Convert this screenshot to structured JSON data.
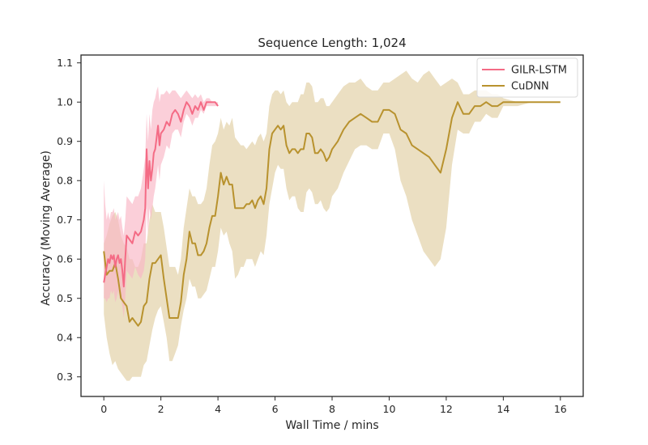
{
  "chart_data": {
    "type": "line",
    "title": "Sequence Length: 1,024",
    "xlabel": "Wall Time / mins",
    "ylabel": "Accuracy (Moving Average)",
    "xlim": [
      -0.8,
      16.8
    ],
    "ylim": [
      0.25,
      1.12
    ],
    "xticks": [
      0,
      2,
      4,
      6,
      8,
      10,
      12,
      14,
      16
    ],
    "xtick_labels": [
      "0",
      "2",
      "4",
      "6",
      "8",
      "10",
      "12",
      "14",
      "16"
    ],
    "yticks": [
      0.3,
      0.4,
      0.5,
      0.6,
      0.7,
      0.8,
      0.9,
      1.0,
      1.1
    ],
    "ytick_labels": [
      "0.3",
      "0.4",
      "0.5",
      "0.6",
      "0.7",
      "0.8",
      "0.9",
      "1.0",
      "1.1"
    ],
    "grid": false,
    "legend_position": "top-right",
    "series": [
      {
        "name": "GILR-LSTM",
        "color": "#f46b85",
        "band_color": "#f9b5c5",
        "x": [
          0,
          0.05,
          0.1,
          0.15,
          0.2,
          0.25,
          0.3,
          0.35,
          0.4,
          0.45,
          0.5,
          0.55,
          0.6,
          0.65,
          0.7,
          0.75,
          0.8,
          0.9,
          1.0,
          1.1,
          1.2,
          1.3,
          1.4,
          1.45,
          1.5,
          1.55,
          1.6,
          1.65,
          1.7,
          1.75,
          1.8,
          1.85,
          1.9,
          1.95,
          2.0,
          2.1,
          2.2,
          2.3,
          2.4,
          2.5,
          2.6,
          2.7,
          2.8,
          2.9,
          3.0,
          3.1,
          3.2,
          3.3,
          3.4,
          3.5,
          3.6,
          3.7,
          3.8,
          3.9,
          4.0
        ],
        "y": [
          0.54,
          0.56,
          0.58,
          0.6,
          0.59,
          0.61,
          0.6,
          0.61,
          0.58,
          0.6,
          0.61,
          0.59,
          0.6,
          0.57,
          0.53,
          0.6,
          0.66,
          0.65,
          0.64,
          0.67,
          0.66,
          0.67,
          0.7,
          0.73,
          0.88,
          0.78,
          0.85,
          0.8,
          0.83,
          0.87,
          0.88,
          0.91,
          0.94,
          0.89,
          0.92,
          0.93,
          0.95,
          0.94,
          0.97,
          0.98,
          0.97,
          0.95,
          0.98,
          1.0,
          0.99,
          0.97,
          0.99,
          0.98,
          1.0,
          0.98,
          1.0,
          1.0,
          1.0,
          1.0,
          0.99
        ],
        "band_lower": [
          0.5,
          0.5,
          0.49,
          0.5,
          0.5,
          0.52,
          0.51,
          0.52,
          0.49,
          0.5,
          0.52,
          0.5,
          0.5,
          0.48,
          0.45,
          0.5,
          0.57,
          0.56,
          0.55,
          0.58,
          0.56,
          0.55,
          0.57,
          0.6,
          0.74,
          0.66,
          0.73,
          0.7,
          0.73,
          0.76,
          0.78,
          0.81,
          0.84,
          0.8,
          0.84,
          0.86,
          0.89,
          0.88,
          0.92,
          0.93,
          0.93,
          0.91,
          0.95,
          0.97,
          0.96,
          0.94,
          0.96,
          0.96,
          0.98,
          0.97,
          0.99,
          0.99,
          0.99,
          0.99,
          0.99
        ],
        "band_upper": [
          0.8,
          0.74,
          0.7,
          0.72,
          0.7,
          0.72,
          0.72,
          0.73,
          0.7,
          0.71,
          0.72,
          0.7,
          0.71,
          0.68,
          0.66,
          0.7,
          0.76,
          0.75,
          0.74,
          0.76,
          0.76,
          0.78,
          0.83,
          0.86,
          0.97,
          0.9,
          0.97,
          0.93,
          0.98,
          1.0,
          1.01,
          1.03,
          1.04,
          1.0,
          1.02,
          1.02,
          1.03,
          1.02,
          1.03,
          1.03,
          1.02,
          1.01,
          1.02,
          1.03,
          1.02,
          1.01,
          1.02,
          1.01,
          1.02,
          1.0,
          1.01,
          1.01,
          1.0,
          1.0,
          1.0
        ]
      },
      {
        "name": "CuDNN",
        "color": "#b8922e",
        "band_color": "#e6d7b3",
        "x": [
          0,
          0.1,
          0.2,
          0.3,
          0.4,
          0.5,
          0.6,
          0.7,
          0.8,
          0.9,
          1.0,
          1.1,
          1.2,
          1.3,
          1.4,
          1.5,
          1.6,
          1.7,
          1.8,
          1.9,
          2.0,
          2.1,
          2.2,
          2.3,
          2.4,
          2.5,
          2.6,
          2.7,
          2.8,
          2.9,
          3.0,
          3.1,
          3.2,
          3.3,
          3.4,
          3.5,
          3.6,
          3.7,
          3.8,
          3.9,
          4.0,
          4.1,
          4.2,
          4.3,
          4.4,
          4.5,
          4.6,
          4.7,
          4.8,
          4.9,
          5.0,
          5.1,
          5.2,
          5.3,
          5.4,
          5.5,
          5.6,
          5.7,
          5.8,
          5.9,
          6.0,
          6.1,
          6.2,
          6.3,
          6.4,
          6.5,
          6.6,
          6.7,
          6.8,
          6.9,
          7.0,
          7.1,
          7.2,
          7.3,
          7.4,
          7.5,
          7.6,
          7.7,
          7.8,
          7.9,
          8.0,
          8.2,
          8.4,
          8.6,
          8.8,
          9.0,
          9.2,
          9.4,
          9.6,
          9.8,
          10.0,
          10.2,
          10.4,
          10.6,
          10.8,
          11.0,
          11.2,
          11.4,
          11.6,
          11.8,
          12.0,
          12.2,
          12.4,
          12.6,
          12.8,
          13.0,
          13.2,
          13.4,
          13.6,
          13.8,
          14.0,
          14.5,
          15.0,
          15.5,
          16.0
        ],
        "y": [
          0.62,
          0.56,
          0.57,
          0.57,
          0.59,
          0.55,
          0.5,
          0.49,
          0.48,
          0.44,
          0.45,
          0.44,
          0.43,
          0.44,
          0.48,
          0.49,
          0.55,
          0.59,
          0.59,
          0.6,
          0.61,
          0.55,
          0.5,
          0.45,
          0.45,
          0.45,
          0.45,
          0.49,
          0.56,
          0.6,
          0.67,
          0.64,
          0.64,
          0.61,
          0.61,
          0.62,
          0.64,
          0.68,
          0.71,
          0.71,
          0.76,
          0.82,
          0.79,
          0.81,
          0.79,
          0.79,
          0.73,
          0.73,
          0.73,
          0.73,
          0.74,
          0.74,
          0.75,
          0.73,
          0.75,
          0.76,
          0.74,
          0.78,
          0.88,
          0.92,
          0.93,
          0.94,
          0.93,
          0.94,
          0.89,
          0.87,
          0.88,
          0.88,
          0.87,
          0.88,
          0.88,
          0.92,
          0.92,
          0.91,
          0.87,
          0.87,
          0.88,
          0.87,
          0.85,
          0.86,
          0.88,
          0.9,
          0.93,
          0.95,
          0.96,
          0.97,
          0.96,
          0.95,
          0.95,
          0.98,
          0.98,
          0.97,
          0.93,
          0.92,
          0.89,
          0.88,
          0.87,
          0.86,
          0.84,
          0.82,
          0.88,
          0.96,
          1.0,
          0.97,
          0.97,
          0.99,
          0.99,
          1.0,
          0.99,
          0.99,
          1.0,
          1.0,
          1.0,
          1.0,
          1.0
        ],
        "band_lower": [
          0.46,
          0.4,
          0.36,
          0.33,
          0.34,
          0.32,
          0.31,
          0.3,
          0.29,
          0.29,
          0.3,
          0.3,
          0.3,
          0.3,
          0.33,
          0.34,
          0.38,
          0.42,
          0.45,
          0.47,
          0.48,
          0.44,
          0.4,
          0.34,
          0.34,
          0.36,
          0.38,
          0.43,
          0.47,
          0.5,
          0.55,
          0.53,
          0.53,
          0.5,
          0.5,
          0.51,
          0.52,
          0.55,
          0.58,
          0.58,
          0.62,
          0.68,
          0.66,
          0.67,
          0.64,
          0.62,
          0.55,
          0.56,
          0.58,
          0.58,
          0.6,
          0.6,
          0.6,
          0.58,
          0.6,
          0.62,
          0.61,
          0.66,
          0.74,
          0.78,
          0.82,
          0.84,
          0.83,
          0.83,
          0.78,
          0.75,
          0.76,
          0.76,
          0.73,
          0.72,
          0.72,
          0.77,
          0.78,
          0.77,
          0.74,
          0.74,
          0.75,
          0.73,
          0.72,
          0.73,
          0.76,
          0.78,
          0.82,
          0.85,
          0.88,
          0.89,
          0.89,
          0.88,
          0.88,
          0.92,
          0.92,
          0.88,
          0.8,
          0.76,
          0.7,
          0.66,
          0.62,
          0.6,
          0.58,
          0.6,
          0.68,
          0.84,
          0.93,
          0.92,
          0.92,
          0.95,
          0.95,
          0.97,
          0.96,
          0.96,
          0.99,
          0.99,
          1.0,
          1.0,
          1.0
        ],
        "band_upper": [
          0.64,
          0.66,
          0.69,
          0.71,
          0.72,
          0.7,
          0.66,
          0.64,
          0.63,
          0.6,
          0.6,
          0.58,
          0.58,
          0.6,
          0.64,
          0.64,
          0.7,
          0.74,
          0.72,
          0.72,
          0.72,
          0.68,
          0.63,
          0.58,
          0.58,
          0.58,
          0.56,
          0.6,
          0.68,
          0.73,
          0.78,
          0.76,
          0.76,
          0.74,
          0.74,
          0.75,
          0.78,
          0.84,
          0.89,
          0.9,
          0.92,
          0.96,
          0.93,
          0.95,
          0.94,
          0.96,
          0.91,
          0.9,
          0.89,
          0.89,
          0.88,
          0.89,
          0.9,
          0.89,
          0.91,
          0.92,
          0.9,
          0.92,
          0.99,
          1.02,
          1.03,
          1.03,
          1.02,
          1.03,
          1.0,
          0.99,
          1.0,
          1.0,
          1.0,
          1.02,
          1.02,
          1.05,
          1.05,
          1.04,
          1.0,
          1.0,
          1.01,
          1.01,
          0.99,
          0.99,
          1.0,
          1.02,
          1.04,
          1.05,
          1.05,
          1.06,
          1.04,
          1.03,
          1.03,
          1.05,
          1.05,
          1.06,
          1.07,
          1.08,
          1.06,
          1.05,
          1.07,
          1.08,
          1.06,
          1.04,
          1.05,
          1.06,
          1.05,
          1.02,
          1.02,
          1.03,
          1.03,
          1.03,
          1.02,
          1.02,
          1.01,
          1.0,
          1.0,
          1.0,
          1.0
        ]
      }
    ]
  }
}
